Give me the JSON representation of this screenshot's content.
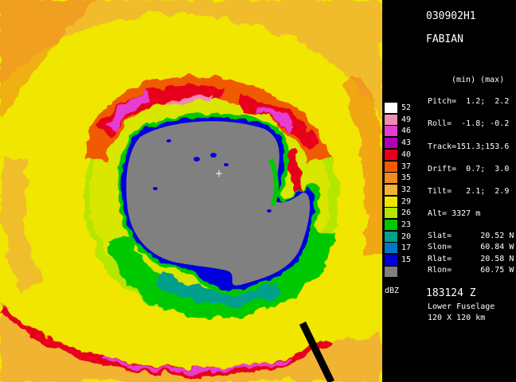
{
  "header": {
    "flight_id": "030902H1",
    "storm_name": "FABIAN"
  },
  "stats": {
    "header": "(min) (max)",
    "pitch": "Pitch=  1.2;  2.2",
    "roll": "Roll=  -1.8; -0.2",
    "track": "Track=151.3;153.6",
    "drift": "Drift=  0.7;  3.0",
    "tilt": "Tilt=   2.1;  2.9",
    "alt": "Alt= 3327 m"
  },
  "position": {
    "slat": "Slat=      20.52 N",
    "slon": "Slon=      60.84 W",
    "rlat": "Rlat=      20.58 N",
    "rlon": "Rlon=      60.75 W"
  },
  "footer": {
    "time": "183124 Z",
    "radar": "Lower Fuselage",
    "range": "120 X 120 km"
  },
  "legend": {
    "unit": "dBZ",
    "entries": [
      {
        "label": "52",
        "color": "#ffffff"
      },
      {
        "label": "49",
        "color": "#f08cb4"
      },
      {
        "label": "46",
        "color": "#e63cd2"
      },
      {
        "label": "43",
        "color": "#b400b4"
      },
      {
        "label": "40",
        "color": "#e6001e"
      },
      {
        "label": "37",
        "color": "#f05a00"
      },
      {
        "label": "35",
        "color": "#f08c1e"
      },
      {
        "label": "32",
        "color": "#f0b432"
      },
      {
        "label": "29",
        "color": "#f0e600"
      },
      {
        "label": "26",
        "color": "#b4e600"
      },
      {
        "label": "23",
        "color": "#00c800"
      },
      {
        "label": "20",
        "color": "#00a08c"
      },
      {
        "label": "17",
        "color": "#0078c8"
      },
      {
        "label": "15",
        "color": "#0000dc"
      },
      {
        "label": "",
        "color": "#808080"
      }
    ]
  }
}
